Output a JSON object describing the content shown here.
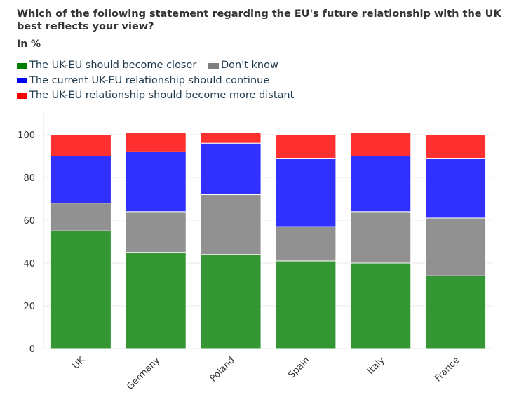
{
  "chart_data": {
    "type": "bar",
    "stacked": true,
    "title": "Which of the following statement regarding the EU's future relationship with the UK best reflects your view?",
    "subtitle": "In %",
    "categories": [
      "UK",
      "Germany",
      "Poland",
      "Spain",
      "Italy",
      "France"
    ],
    "series": [
      {
        "name": "The UK-EU should become closer",
        "color": "#1e8c1e",
        "values": [
          55,
          45,
          44,
          41,
          40,
          34
        ]
      },
      {
        "name": "Don't know",
        "color": "#858585",
        "values": [
          13,
          19,
          28,
          16,
          24,
          27
        ]
      },
      {
        "name": "The current UK-EU relationship should continue",
        "color": "#1a1aff",
        "values": [
          22,
          28,
          24,
          32,
          26,
          28
        ]
      },
      {
        "name": "The UK-EU relationship should become more distant",
        "color": "#ff1a1a",
        "values": [
          10,
          9,
          5,
          11,
          11,
          11
        ]
      }
    ],
    "yticks": [
      0,
      20,
      40,
      60,
      80,
      100
    ],
    "ylim": [
      0,
      100
    ],
    "grid": true,
    "legend_position": "top-left"
  }
}
